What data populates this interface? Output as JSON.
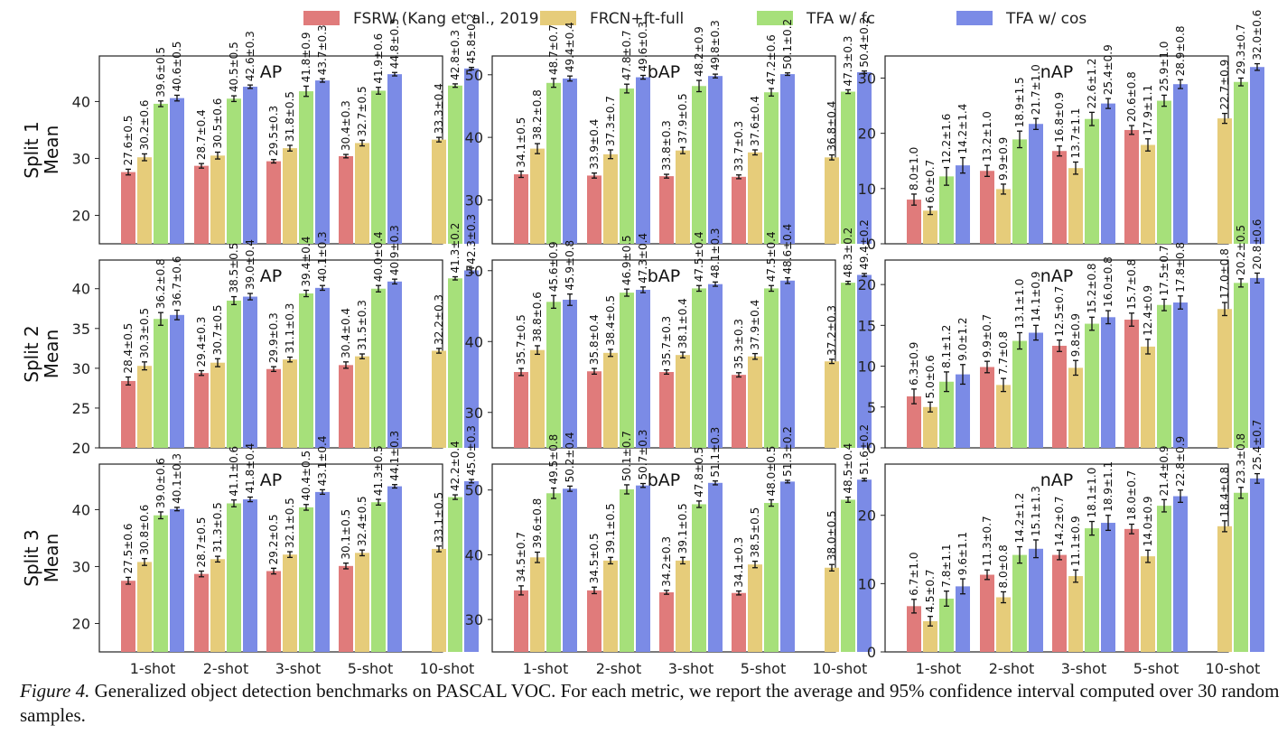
{
  "caption": {
    "label": "Figure 4.",
    "text": "Generalized object detection benchmarks on PASCAL VOC. For each metric, we report the average and 95% confidence interval computed over 30 random samples."
  },
  "colors": {
    "FSRW (Kang et al., 2019)": "#e07b7b",
    "FRCN+ft-full": "#e6cc7a",
    "TFA w/ fc": "#a6e07a",
    "TFA w/ cos": "#7b8be6"
  },
  "chart_data": {
    "type": "bar",
    "categories": [
      "1-shot",
      "2-shot",
      "3-shot",
      "5-shot",
      "10-shot"
    ],
    "legend": [
      "FSRW (Kang et al., 2019)",
      "FRCN+ft-full",
      "TFA w/ fc",
      "TFA w/ cos"
    ],
    "row_labels": [
      [
        "Split 1",
        "Mean"
      ],
      [
        "Split 2",
        "Mean"
      ],
      [
        "Split 3",
        "Mean"
      ]
    ],
    "panels": [
      {
        "split": "Split 1",
        "title": "AP",
        "ylim": [
          15,
          48
        ],
        "yticks": [
          20,
          30,
          40
        ],
        "values": [
          [
            27.6,
            30.2,
            39.6,
            40.6
          ],
          [
            28.7,
            30.5,
            40.5,
            42.6
          ],
          [
            29.5,
            31.8,
            41.8,
            43.7
          ],
          [
            30.4,
            32.7,
            41.9,
            44.8
          ],
          [
            null,
            33.3,
            42.8,
            45.8
          ]
        ],
        "errors": [
          [
            0.5,
            0.6,
            0.5,
            0.5
          ],
          [
            0.4,
            0.6,
            0.5,
            0.3
          ],
          [
            0.3,
            0.5,
            0.9,
            0.3
          ],
          [
            0.3,
            0.5,
            0.6,
            0.3
          ],
          [
            null,
            0.4,
            0.3,
            0.2
          ]
        ]
      },
      {
        "split": "Split 1",
        "title": "bAP",
        "ylim": [
          23,
          53
        ],
        "yticks": [
          30,
          40,
          50
        ],
        "values": [
          [
            34.1,
            38.2,
            48.7,
            49.4
          ],
          [
            33.9,
            37.3,
            47.8,
            49.6
          ],
          [
            33.8,
            37.9,
            48.2,
            49.8
          ],
          [
            33.7,
            37.6,
            47.2,
            50.1
          ],
          [
            null,
            36.8,
            47.3,
            50.4
          ]
        ],
        "errors": [
          [
            0.5,
            0.8,
            0.7,
            0.4
          ],
          [
            0.4,
            0.7,
            0.7,
            0.3
          ],
          [
            0.3,
            0.5,
            0.9,
            0.3
          ],
          [
            0.3,
            0.4,
            0.6,
            0.2
          ],
          [
            null,
            0.4,
            0.3,
            0.2
          ]
        ]
      },
      {
        "split": "Split 1",
        "title": "nAP",
        "ylim": [
          0,
          34
        ],
        "yticks": [
          0,
          10,
          20,
          30
        ],
        "values": [
          [
            8.0,
            6.0,
            12.2,
            14.2
          ],
          [
            13.2,
            9.9,
            18.9,
            21.7
          ],
          [
            16.8,
            13.7,
            22.6,
            25.4
          ],
          [
            20.6,
            17.9,
            25.9,
            28.9
          ],
          [
            null,
            22.7,
            29.3,
            32.0
          ]
        ],
        "errors": [
          [
            1.0,
            0.7,
            1.6,
            1.4
          ],
          [
            1.0,
            0.9,
            1.5,
            1.0
          ],
          [
            0.9,
            1.1,
            1.2,
            0.9
          ],
          [
            0.8,
            1.1,
            1.0,
            0.8
          ],
          [
            null,
            0.9,
            0.7,
            0.6
          ]
        ]
      },
      {
        "split": "Split 2",
        "title": "AP",
        "ylim": [
          20,
          43.6
        ],
        "yticks": [
          20,
          25,
          30,
          35,
          40
        ],
        "values": [
          [
            28.4,
            30.3,
            36.2,
            36.7
          ],
          [
            29.4,
            30.7,
            38.5,
            39.0
          ],
          [
            29.9,
            31.1,
            39.4,
            40.1
          ],
          [
            30.4,
            31.5,
            40.0,
            40.9
          ],
          [
            null,
            32.2,
            41.3,
            42.3
          ]
        ],
        "errors": [
          [
            0.5,
            0.5,
            0.8,
            0.6
          ],
          [
            0.3,
            0.5,
            0.5,
            0.4
          ],
          [
            0.3,
            0.3,
            0.4,
            0.3
          ],
          [
            0.4,
            0.3,
            0.4,
            0.3
          ],
          [
            null,
            0.3,
            0.2,
            0.3
          ]
        ]
      },
      {
        "split": "Split 2",
        "title": "bAP",
        "ylim": [
          25,
          51.5
        ],
        "yticks": [
          30,
          40,
          50
        ],
        "values": [
          [
            35.7,
            38.8,
            45.6,
            45.9
          ],
          [
            35.8,
            38.4,
            46.9,
            47.3
          ],
          [
            35.7,
            38.1,
            47.5,
            48.1
          ],
          [
            35.3,
            37.9,
            47.5,
            48.6
          ],
          [
            null,
            37.2,
            48.3,
            49.4
          ]
        ],
        "errors": [
          [
            0.5,
            0.6,
            0.9,
            0.8
          ],
          [
            0.4,
            0.5,
            0.5,
            0.4
          ],
          [
            0.3,
            0.4,
            0.4,
            0.3
          ],
          [
            0.3,
            0.4,
            0.4,
            0.4
          ],
          [
            null,
            0.3,
            0.2,
            0.2
          ]
        ]
      },
      {
        "split": "Split 2",
        "title": "nAP",
        "ylim": [
          0,
          23
        ],
        "yticks": [
          0,
          5,
          10,
          15,
          20
        ],
        "values": [
          [
            6.3,
            5.0,
            8.1,
            9.0
          ],
          [
            9.9,
            7.7,
            13.1,
            14.1
          ],
          [
            12.5,
            9.8,
            15.2,
            16.0
          ],
          [
            15.7,
            12.4,
            17.5,
            17.8
          ],
          [
            null,
            17.0,
            20.2,
            20.8
          ]
        ],
        "errors": [
          [
            0.9,
            0.6,
            1.2,
            1.2
          ],
          [
            0.7,
            0.8,
            1.0,
            0.9
          ],
          [
            0.7,
            0.9,
            0.8,
            0.8
          ],
          [
            0.8,
            0.9,
            0.7,
            0.8
          ],
          [
            null,
            0.8,
            0.5,
            0.6
          ]
        ]
      },
      {
        "split": "Split 3",
        "title": "AP",
        "ylim": [
          15,
          48
        ],
        "yticks": [
          20,
          30,
          40
        ],
        "values": [
          [
            27.5,
            30.8,
            39.0,
            40.1
          ],
          [
            28.7,
            31.3,
            41.1,
            41.8
          ],
          [
            29.2,
            32.1,
            40.4,
            43.1
          ],
          [
            30.1,
            32.4,
            41.3,
            44.1
          ],
          [
            null,
            33.1,
            42.2,
            45.0
          ]
        ],
        "errors": [
          [
            0.6,
            0.6,
            0.6,
            0.3
          ],
          [
            0.5,
            0.5,
            0.6,
            0.4
          ],
          [
            0.5,
            0.5,
            0.5,
            0.4
          ],
          [
            0.5,
            0.5,
            0.5,
            0.3
          ],
          [
            null,
            0.5,
            0.4,
            0.3
          ]
        ]
      },
      {
        "split": "Split 3",
        "title": "bAP",
        "ylim": [
          25,
          54
        ],
        "yticks": [
          30,
          40,
          50
        ],
        "values": [
          [
            34.5,
            39.6,
            49.5,
            50.2
          ],
          [
            34.5,
            39.1,
            50.1,
            50.7
          ],
          [
            34.2,
            39.1,
            47.8,
            51.1
          ],
          [
            34.1,
            38.5,
            48.0,
            51.3
          ],
          [
            null,
            38.0,
            48.5,
            51.6
          ]
        ],
        "errors": [
          [
            0.7,
            0.8,
            0.8,
            0.4
          ],
          [
            0.5,
            0.5,
            0.7,
            0.3
          ],
          [
            0.3,
            0.5,
            0.5,
            0.3
          ],
          [
            0.3,
            0.5,
            0.5,
            0.2
          ],
          [
            null,
            0.5,
            0.4,
            0.2
          ]
        ]
      },
      {
        "split": "Split 3",
        "title": "nAP",
        "ylim": [
          0,
          27.5
        ],
        "yticks": [
          0,
          10,
          20
        ],
        "values": [
          [
            6.7,
            4.5,
            7.8,
            9.6
          ],
          [
            11.3,
            8.0,
            14.2,
            15.1
          ],
          [
            14.2,
            11.1,
            18.1,
            18.9
          ],
          [
            18.0,
            14.0,
            21.4,
            22.8
          ],
          [
            null,
            18.4,
            23.3,
            25.4
          ]
        ],
        "errors": [
          [
            1.0,
            0.7,
            1.1,
            1.1
          ],
          [
            0.7,
            0.8,
            1.2,
            1.3
          ],
          [
            0.7,
            0.9,
            1.0,
            1.1
          ],
          [
            0.7,
            0.9,
            0.9,
            0.9
          ],
          [
            null,
            0.8,
            0.8,
            0.7
          ]
        ]
      }
    ]
  }
}
